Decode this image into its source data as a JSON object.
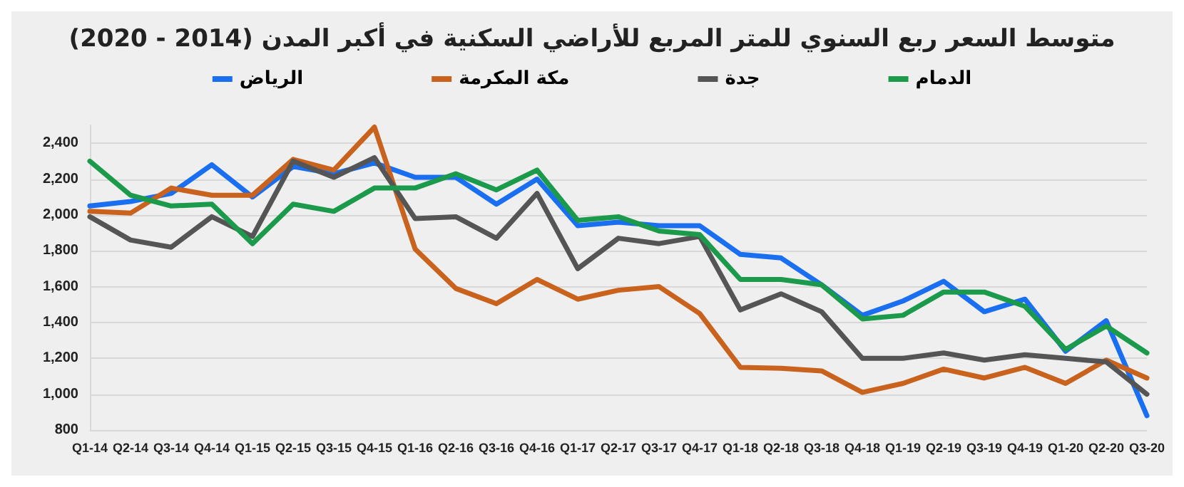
{
  "chart_data": {
    "type": "line",
    "title": "متوسط السعر ربع السنوي للمتر المربع للأراضي السكنية في أكبر المدن (2014 - 2020)",
    "categories": [
      "Q1-14",
      "Q2-14",
      "Q3-14",
      "Q4-14",
      "Q1-15",
      "Q2-15",
      "Q3-15",
      "Q4-15",
      "Q1-16",
      "Q2-16",
      "Q3-16",
      "Q4-16",
      "Q1-17",
      "Q2-17",
      "Q3-17",
      "Q4-17",
      "Q1-18",
      "Q2-18",
      "Q3-18",
      "Q4-18",
      "Q1-19",
      "Q2-19",
      "Q3-19",
      "Q4-19",
      "Q1-20",
      "Q2-20",
      "Q3-20"
    ],
    "series": [
      {
        "name": "الرياض",
        "color": "#1a6ef0",
        "values": [
          2050,
          2075,
          2120,
          2280,
          2100,
          2270,
          2230,
          2290,
          2210,
          2210,
          2060,
          2200,
          1940,
          1960,
          1940,
          1940,
          1780,
          1760,
          1610,
          1440,
          1520,
          1630,
          1460,
          1530,
          1240,
          1410,
          880
        ]
      },
      {
        "name": "مكة المكرمة",
        "color": "#c8621c",
        "values": [
          2020,
          2010,
          2150,
          2110,
          2110,
          2310,
          2250,
          2490,
          1810,
          1590,
          1505,
          1640,
          1530,
          1580,
          1600,
          1450,
          1150,
          1145,
          1130,
          1010,
          1060,
          1140,
          1090,
          1150,
          1060,
          1190,
          1090
        ]
      },
      {
        "name": "جدة",
        "color": "#555555",
        "values": [
          1990,
          1860,
          1820,
          1990,
          1880,
          2300,
          2210,
          2320,
          1980,
          1990,
          1870,
          2120,
          1700,
          1870,
          1840,
          1880,
          1470,
          1560,
          1460,
          1200,
          1200,
          1230,
          1190,
          1220,
          1200,
          1180,
          1000
        ]
      },
      {
        "name": "الدمام",
        "color": "#1a9a4a",
        "values": [
          2300,
          2110,
          2050,
          2060,
          1840,
          2060,
          2020,
          2150,
          2150,
          2230,
          2140,
          2250,
          1970,
          1990,
          1910,
          1890,
          1640,
          1640,
          1610,
          1420,
          1440,
          1570,
          1570,
          1490,
          1250,
          1380,
          1230
        ]
      }
    ],
    "ylim": [
      800,
      2500
    ],
    "yticks": [
      {
        "value": 800,
        "label": "800"
      },
      {
        "value": 1000,
        "label": "1,000"
      },
      {
        "value": 1200,
        "label": "1,200"
      },
      {
        "value": 1400,
        "label": "1,400"
      },
      {
        "value": 1600,
        "label": "1,600"
      },
      {
        "value": 1800,
        "label": "1,800"
      },
      {
        "value": 2000,
        "label": "2,000"
      },
      {
        "value": 2200,
        "label": "2,200"
      },
      {
        "value": 2400,
        "label": "2,400"
      }
    ],
    "grid": "y",
    "legend": "top",
    "marker": "none",
    "line_style": "solid"
  }
}
